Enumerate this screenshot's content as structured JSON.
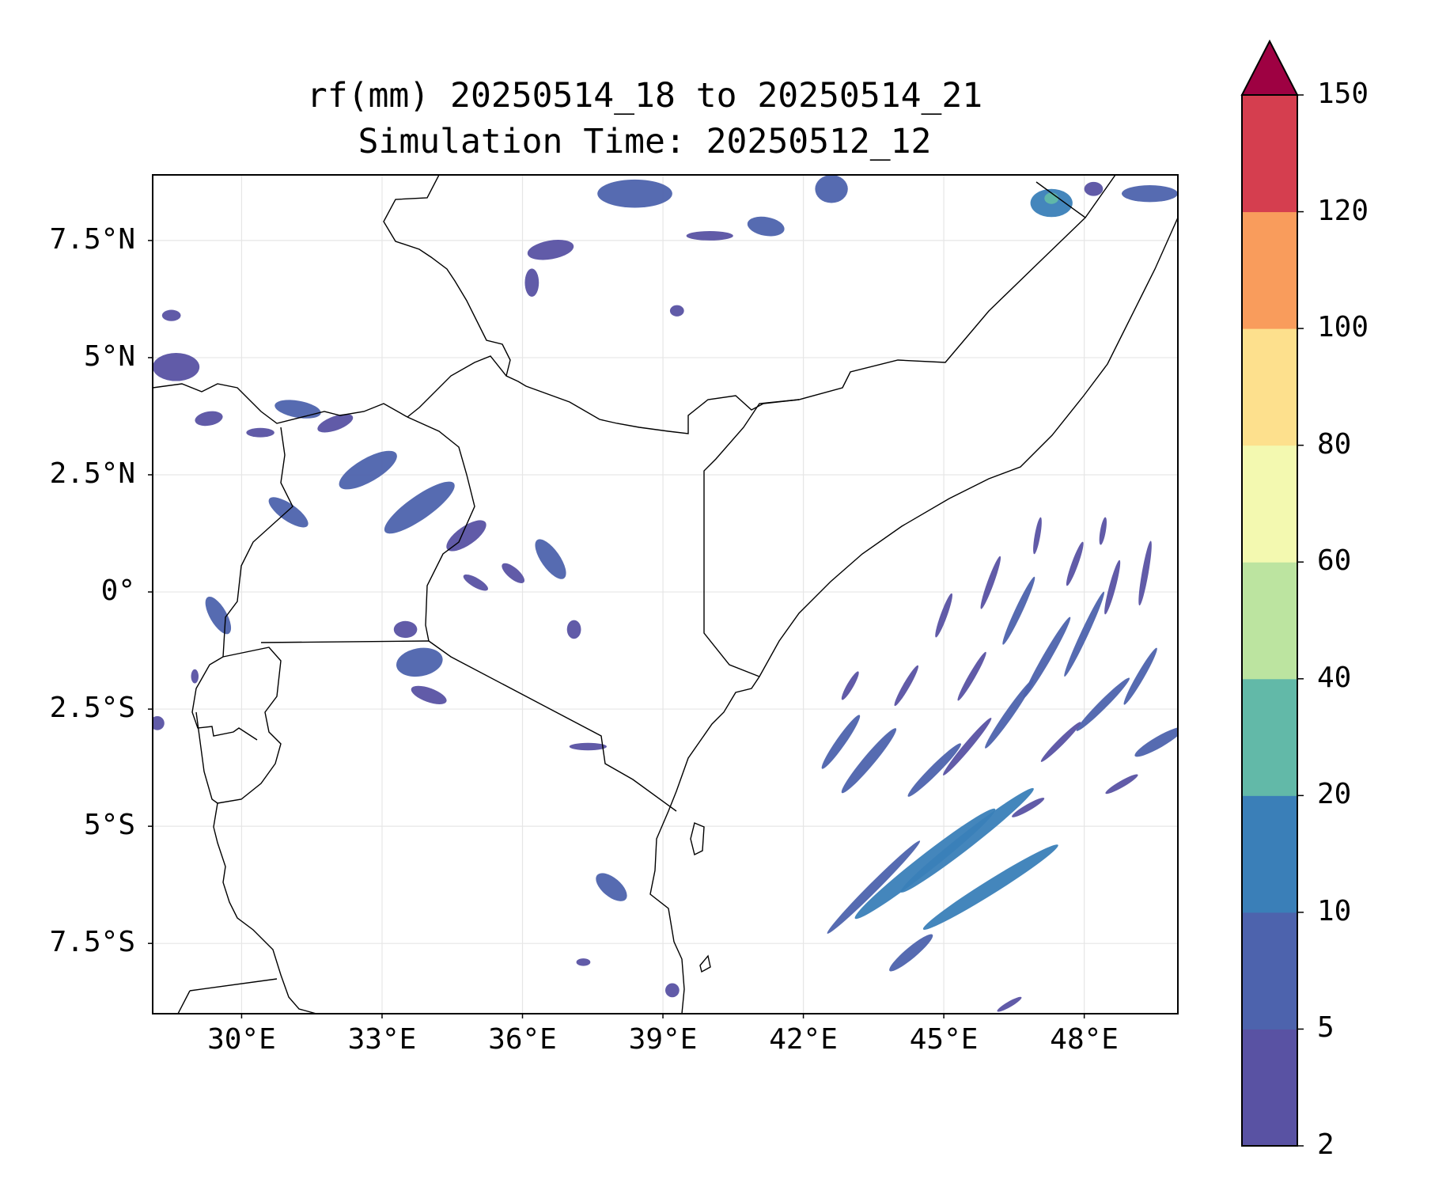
{
  "map": {
    "title_line1": "rf(mm) 20250514_18 to 20250514_21",
    "title_line2": "Simulation Time: 20250512_12",
    "lon_range": [
      28.1,
      50.0
    ],
    "lat_range": [
      -9.0,
      8.9
    ],
    "gridlines": true,
    "x_ticks": [
      {
        "lon": 30,
        "label": "30°E"
      },
      {
        "lon": 33,
        "label": "33°E"
      },
      {
        "lon": 36,
        "label": "36°E"
      },
      {
        "lon": 39,
        "label": "39°E"
      },
      {
        "lon": 42,
        "label": "42°E"
      },
      {
        "lon": 45,
        "label": "45°E"
      },
      {
        "lon": 48,
        "label": "48°E"
      }
    ],
    "y_ticks": [
      {
        "lat": 7.5,
        "label": "7.5°N"
      },
      {
        "lat": 5,
        "label": "5°N"
      },
      {
        "lat": 2.5,
        "label": "2.5°N"
      },
      {
        "lat": 0,
        "label": "0°"
      },
      {
        "lat": -2.5,
        "label": "2.5°S"
      },
      {
        "lat": -5,
        "label": "5°S"
      },
      {
        "lat": -7.5,
        "label": "7.5°S"
      }
    ]
  },
  "colorbar": {
    "orientation": "vertical",
    "extend": "max",
    "levels": [
      {
        "value": 2,
        "label": "2"
      },
      {
        "value": 5,
        "label": "5"
      },
      {
        "value": 10,
        "label": "10"
      },
      {
        "value": 20,
        "label": "20"
      },
      {
        "value": 40,
        "label": "40"
      },
      {
        "value": 60,
        "label": "60"
      },
      {
        "value": 80,
        "label": "80"
      },
      {
        "value": 100,
        "label": "100"
      },
      {
        "value": 120,
        "label": "120"
      },
      {
        "value": 150,
        "label": "150"
      }
    ],
    "colors": [
      "#5952a3",
      "#4d63ad",
      "#3a7fb8",
      "#62b9a8",
      "#bce4a0",
      "#f3f9b0",
      "#fde08d",
      "#f99c5c",
      "#d53e4f"
    ],
    "extend_color": "#9e0142"
  },
  "rain_areas": [
    {
      "lon": 28.6,
      "lat": 4.8,
      "rx": 0.5,
      "ry": 0.3,
      "rot": 0,
      "level": 0
    },
    {
      "lon": 29.3,
      "lat": 3.7,
      "rx": 0.3,
      "ry": 0.15,
      "rot": 10,
      "level": 0
    },
    {
      "lon": 30.4,
      "lat": 3.4,
      "rx": 0.3,
      "ry": 0.1,
      "rot": 0,
      "level": 0
    },
    {
      "lon": 31.2,
      "lat": 3.9,
      "rx": 0.5,
      "ry": 0.18,
      "rot": -10,
      "level": 1
    },
    {
      "lon": 32.0,
      "lat": 3.6,
      "rx": 0.4,
      "ry": 0.15,
      "rot": 20,
      "level": 0
    },
    {
      "lon": 32.7,
      "lat": 2.6,
      "rx": 0.7,
      "ry": 0.25,
      "rot": 30,
      "level": 1
    },
    {
      "lon": 33.8,
      "lat": 1.8,
      "rx": 0.9,
      "ry": 0.25,
      "rot": 35,
      "level": 1
    },
    {
      "lon": 34.8,
      "lat": 1.2,
      "rx": 0.5,
      "ry": 0.2,
      "rot": 35,
      "level": 0
    },
    {
      "lon": 31.0,
      "lat": 1.7,
      "rx": 0.5,
      "ry": 0.18,
      "rot": -35,
      "level": 1
    },
    {
      "lon": 29.5,
      "lat": -0.5,
      "rx": 0.45,
      "ry": 0.18,
      "rot": -60,
      "level": 1
    },
    {
      "lon": 28.5,
      "lat": 5.9,
      "rx": 0.2,
      "ry": 0.12,
      "rot": 0,
      "level": 0
    },
    {
      "lon": 36.6,
      "lat": 0.7,
      "rx": 0.5,
      "ry": 0.2,
      "rot": -55,
      "level": 1
    },
    {
      "lon": 35.8,
      "lat": 0.4,
      "rx": 0.3,
      "ry": 0.12,
      "rot": -40,
      "level": 0
    },
    {
      "lon": 35.0,
      "lat": 0.2,
      "rx": 0.3,
      "ry": 0.1,
      "rot": -30,
      "level": 0
    },
    {
      "lon": 33.8,
      "lat": -1.5,
      "rx": 0.5,
      "ry": 0.3,
      "rot": 10,
      "level": 1
    },
    {
      "lon": 34.0,
      "lat": -2.2,
      "rx": 0.4,
      "ry": 0.15,
      "rot": -20,
      "level": 0
    },
    {
      "lon": 33.5,
      "lat": -0.8,
      "rx": 0.25,
      "ry": 0.18,
      "rot": 0,
      "level": 0
    },
    {
      "lon": 37.1,
      "lat": -0.8,
      "rx": 0.15,
      "ry": 0.2,
      "rot": 0,
      "level": 0
    },
    {
      "lon": 38.4,
      "lat": 8.5,
      "rx": 0.8,
      "ry": 0.3,
      "rot": 0,
      "level": 1
    },
    {
      "lon": 40.0,
      "lat": 7.6,
      "rx": 0.5,
      "ry": 0.1,
      "rot": 0,
      "level": 0
    },
    {
      "lon": 41.2,
      "lat": 7.8,
      "rx": 0.4,
      "ry": 0.2,
      "rot": -10,
      "level": 1
    },
    {
      "lon": 42.6,
      "lat": 8.6,
      "rx": 0.35,
      "ry": 0.3,
      "rot": 0,
      "level": 1
    },
    {
      "lon": 36.6,
      "lat": 7.3,
      "rx": 0.5,
      "ry": 0.2,
      "rot": 10,
      "level": 0
    },
    {
      "lon": 36.2,
      "lat": 6.6,
      "rx": 0.15,
      "ry": 0.3,
      "rot": 0,
      "level": 0
    },
    {
      "lon": 39.3,
      "lat": 6.0,
      "rx": 0.15,
      "ry": 0.12,
      "rot": 0,
      "level": 0
    },
    {
      "lon": 47.3,
      "lat": 8.3,
      "rx": 0.45,
      "ry": 0.3,
      "rot": 0,
      "level": 2
    },
    {
      "lon": 47.3,
      "lat": 8.4,
      "rx": 0.15,
      "ry": 0.12,
      "rot": 0,
      "level": 3
    },
    {
      "lon": 49.4,
      "lat": 8.5,
      "rx": 0.6,
      "ry": 0.18,
      "rot": 0,
      "level": 1
    },
    {
      "lon": 48.2,
      "lat": 8.6,
      "rx": 0.2,
      "ry": 0.15,
      "rot": 0,
      "level": 0
    },
    {
      "lon": 37.9,
      "lat": -6.3,
      "rx": 0.4,
      "ry": 0.2,
      "rot": -40,
      "level": 1
    },
    {
      "lon": 37.4,
      "lat": -3.3,
      "rx": 0.4,
      "ry": 0.08,
      "rot": 0,
      "level": 0
    },
    {
      "lon": 39.2,
      "lat": -8.5,
      "rx": 0.15,
      "ry": 0.15,
      "rot": 0,
      "level": 0
    },
    {
      "lon": 37.3,
      "lat": -7.9,
      "rx": 0.15,
      "ry": 0.08,
      "rot": 0,
      "level": 0
    },
    {
      "lon": 28.2,
      "lat": -2.8,
      "rx": 0.15,
      "ry": 0.15,
      "rot": 0,
      "level": 0
    },
    {
      "lon": 29.0,
      "lat": -1.8,
      "rx": 0.08,
      "ry": 0.15,
      "rot": 0,
      "level": 0
    }
  ],
  "rain_bands": [
    {
      "lon": 44.6,
      "lat": -5.8,
      "rx": 1.9,
      "ry": 0.18,
      "rot": 38,
      "level": 2
    },
    {
      "lon": 45.5,
      "lat": -5.3,
      "rx": 1.8,
      "ry": 0.16,
      "rot": 38,
      "level": 2
    },
    {
      "lon": 46.0,
      "lat": -6.3,
      "rx": 1.7,
      "ry": 0.15,
      "rot": 32,
      "level": 2
    },
    {
      "lon": 43.5,
      "lat": -6.3,
      "rx": 1.4,
      "ry": 0.1,
      "rot": 45,
      "level": 1
    },
    {
      "lon": 44.3,
      "lat": -7.7,
      "rx": 0.6,
      "ry": 0.12,
      "rot": 40,
      "level": 1
    },
    {
      "lon": 43.4,
      "lat": -3.6,
      "rx": 0.9,
      "ry": 0.12,
      "rot": 50,
      "level": 1
    },
    {
      "lon": 42.8,
      "lat": -3.2,
      "rx": 0.7,
      "ry": 0.1,
      "rot": 55,
      "level": 1
    },
    {
      "lon": 44.8,
      "lat": -3.8,
      "rx": 0.8,
      "ry": 0.1,
      "rot": 45,
      "level": 1
    },
    {
      "lon": 45.5,
      "lat": -3.3,
      "rx": 0.8,
      "ry": 0.08,
      "rot": 50,
      "level": 0
    },
    {
      "lon": 46.4,
      "lat": -2.6,
      "rx": 0.9,
      "ry": 0.09,
      "rot": 55,
      "level": 1
    },
    {
      "lon": 46.6,
      "lat": -0.4,
      "rx": 0.8,
      "ry": 0.08,
      "rot": 65,
      "level": 1
    },
    {
      "lon": 47.2,
      "lat": -1.4,
      "rx": 1.0,
      "ry": 0.09,
      "rot": 60,
      "level": 1
    },
    {
      "lon": 48.0,
      "lat": -0.9,
      "rx": 1.0,
      "ry": 0.08,
      "rot": 65,
      "level": 1
    },
    {
      "lon": 48.4,
      "lat": -2.4,
      "rx": 0.8,
      "ry": 0.09,
      "rot": 45,
      "level": 1
    },
    {
      "lon": 49.2,
      "lat": -1.8,
      "rx": 0.7,
      "ry": 0.08,
      "rot": 60,
      "level": 1
    },
    {
      "lon": 49.6,
      "lat": -3.2,
      "rx": 0.6,
      "ry": 0.12,
      "rot": 30,
      "level": 1
    },
    {
      "lon": 49.3,
      "lat": 0.4,
      "rx": 0.7,
      "ry": 0.07,
      "rot": 80,
      "level": 0
    },
    {
      "lon": 48.6,
      "lat": 0.1,
      "rx": 0.6,
      "ry": 0.07,
      "rot": 75,
      "level": 0
    },
    {
      "lon": 47.8,
      "lat": 0.6,
      "rx": 0.5,
      "ry": 0.07,
      "rot": 70,
      "level": 0
    },
    {
      "lon": 46.0,
      "lat": 0.2,
      "rx": 0.6,
      "ry": 0.07,
      "rot": 70,
      "level": 0
    },
    {
      "lon": 45.0,
      "lat": -0.5,
      "rx": 0.5,
      "ry": 0.07,
      "rot": 70,
      "level": 0
    },
    {
      "lon": 45.6,
      "lat": -1.8,
      "rx": 0.6,
      "ry": 0.07,
      "rot": 60,
      "level": 0
    },
    {
      "lon": 44.2,
      "lat": -2.0,
      "rx": 0.5,
      "ry": 0.07,
      "rot": 60,
      "level": 0
    },
    {
      "lon": 47.5,
      "lat": -3.2,
      "rx": 0.6,
      "ry": 0.07,
      "rot": 45,
      "level": 0
    },
    {
      "lon": 46.8,
      "lat": -4.6,
      "rx": 0.4,
      "ry": 0.07,
      "rot": 30,
      "level": 0
    },
    {
      "lon": 48.8,
      "lat": -4.1,
      "rx": 0.4,
      "ry": 0.07,
      "rot": 30,
      "level": 0
    },
    {
      "lon": 43.0,
      "lat": -2.0,
      "rx": 0.35,
      "ry": 0.07,
      "rot": 60,
      "level": 0
    },
    {
      "lon": 46.4,
      "lat": -8.8,
      "rx": 0.3,
      "ry": 0.06,
      "rot": 30,
      "level": 0
    },
    {
      "lon": 47.0,
      "lat": 1.2,
      "rx": 0.4,
      "ry": 0.06,
      "rot": 80,
      "level": 0
    },
    {
      "lon": 48.4,
      "lat": 1.3,
      "rx": 0.3,
      "ry": 0.06,
      "rot": 80,
      "level": 0
    }
  ]
}
